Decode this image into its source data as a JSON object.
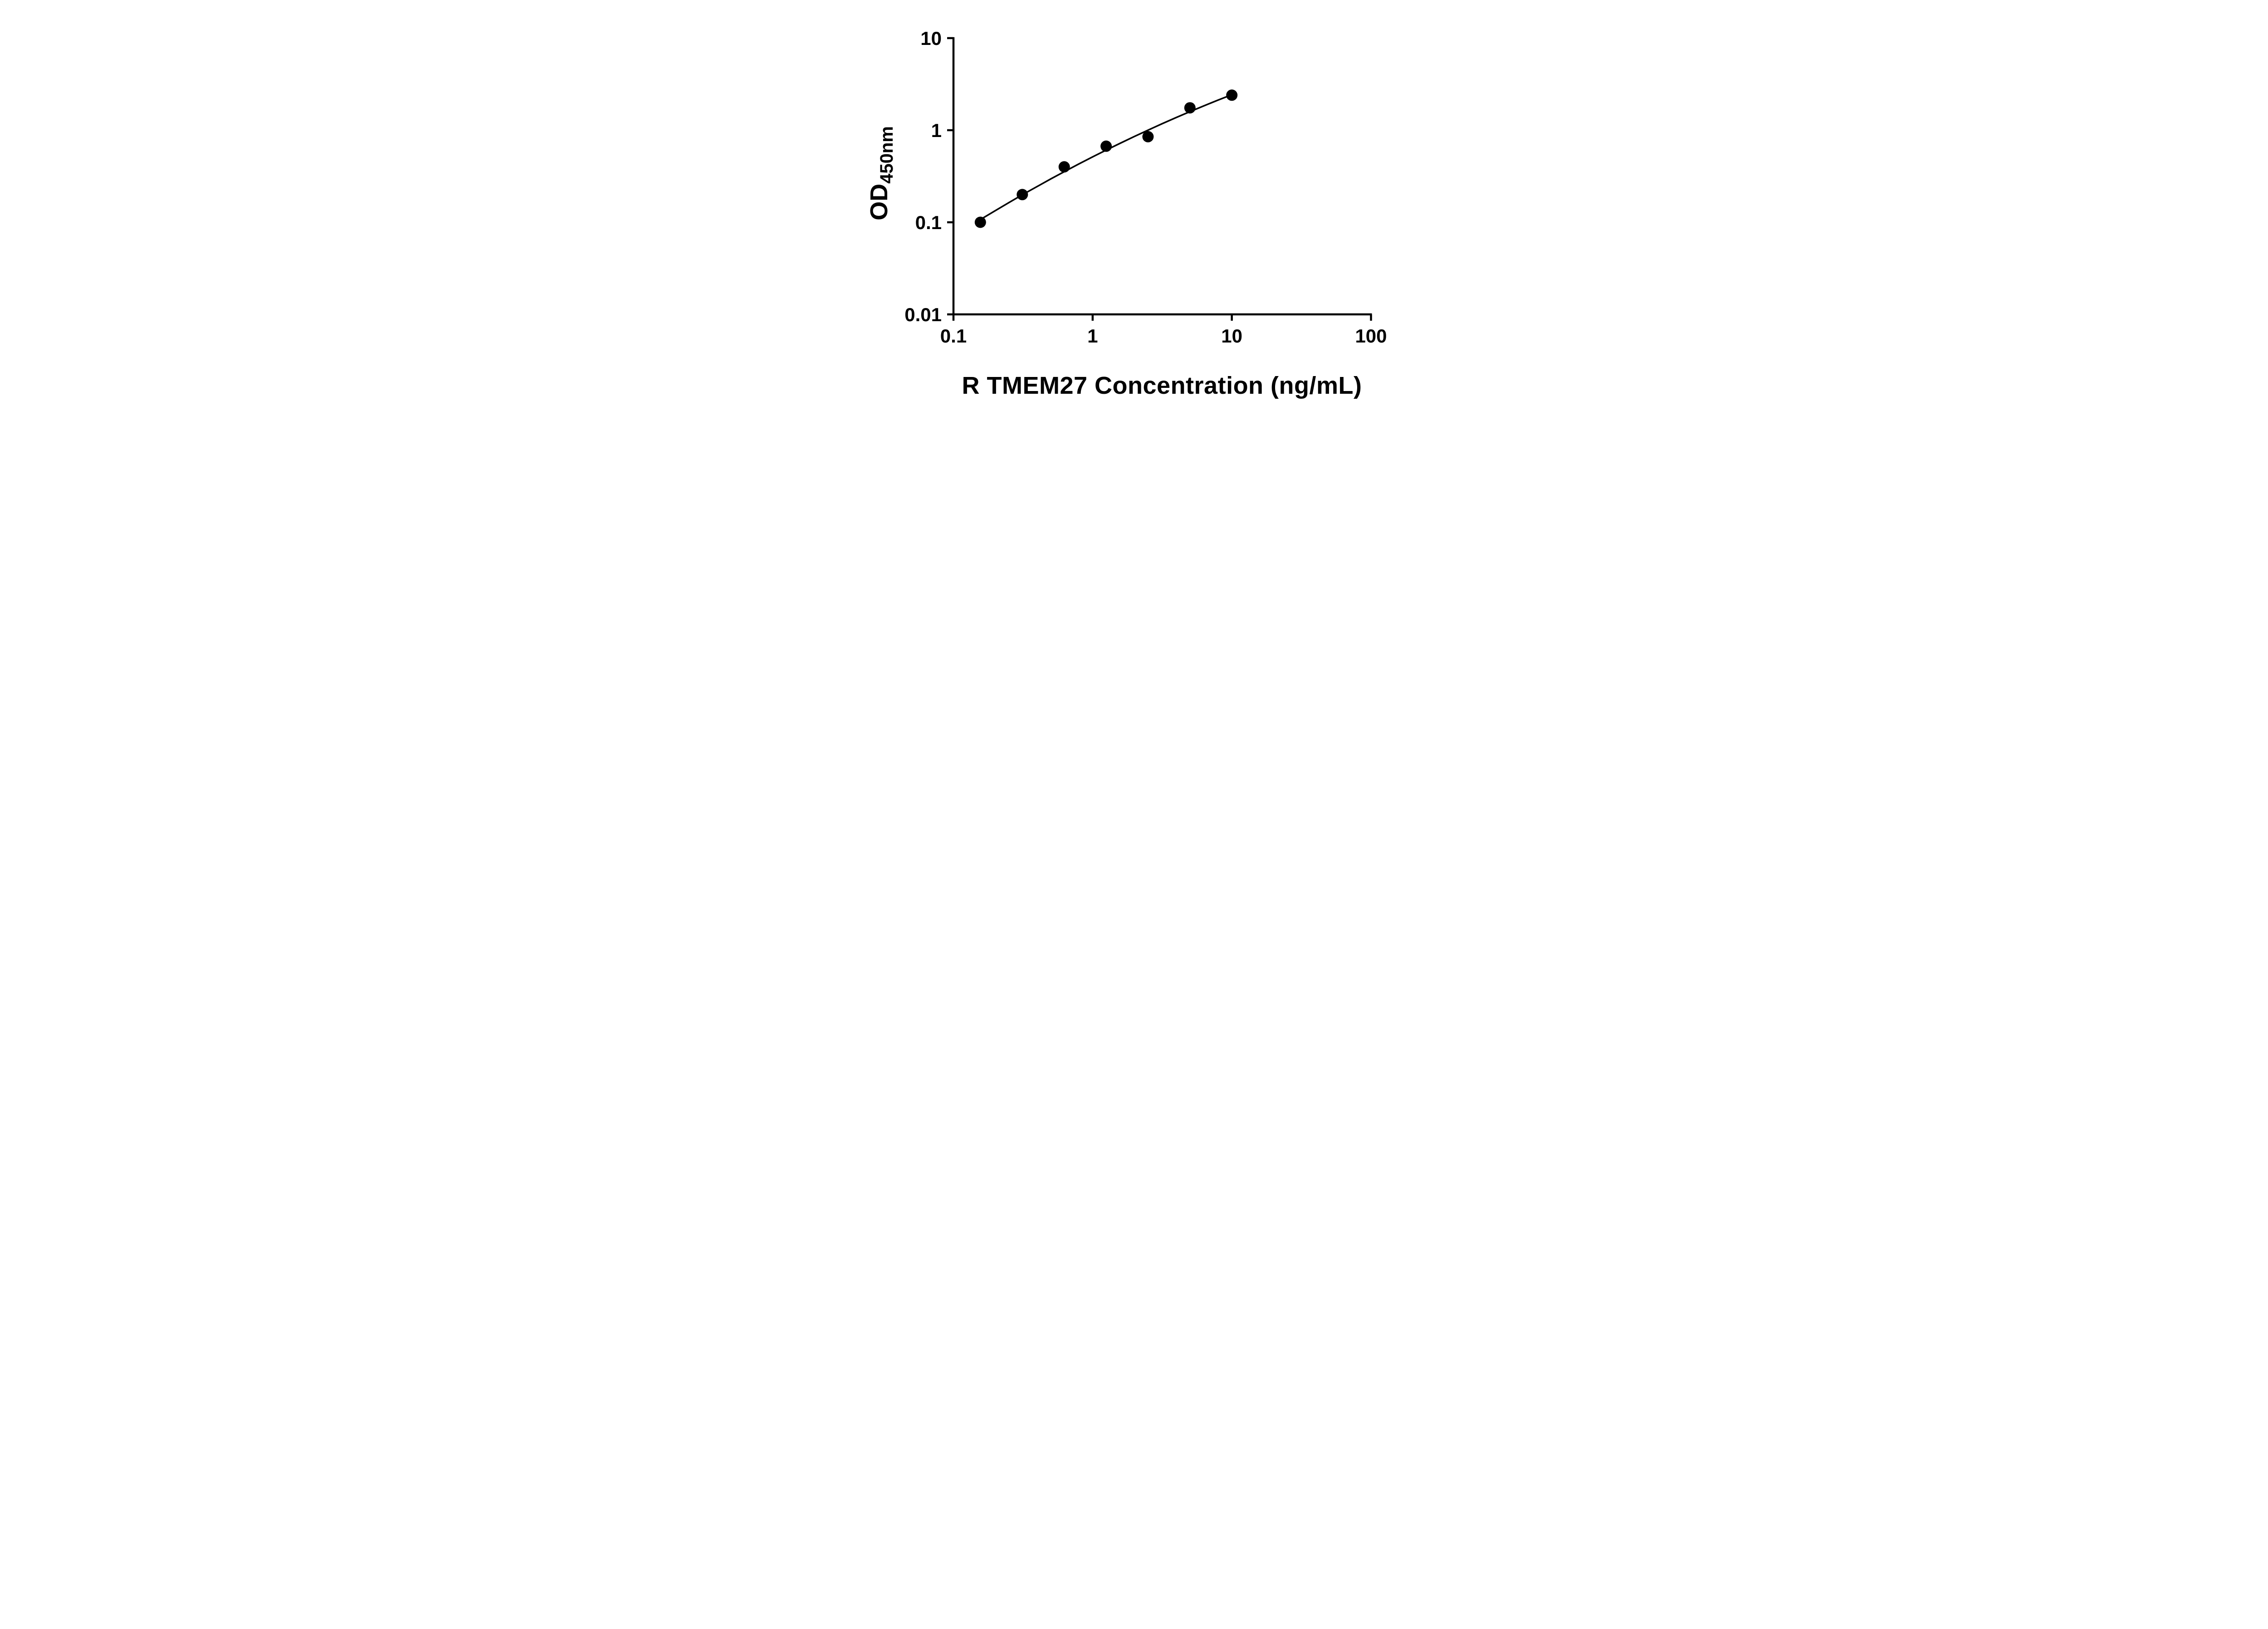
{
  "figure": {
    "background": "#ffffff"
  },
  "chart_data": {
    "type": "scatter",
    "title": "",
    "xlabel": "R TMEM27 Concentration (ng/mL)",
    "ylabel_base": "OD",
    "ylabel_sub": "450nm",
    "x_scale": "log",
    "y_scale": "log",
    "xlim": [
      0.1,
      100
    ],
    "ylim": [
      0.01,
      10
    ],
    "x_ticks": [
      0.1,
      1,
      10,
      100
    ],
    "x_tick_labels": [
      "0.1",
      "1",
      "10",
      "100"
    ],
    "y_ticks": [
      0.01,
      0.1,
      1,
      10
    ],
    "y_tick_labels": [
      "0.01",
      "0.1",
      "1",
      "10"
    ],
    "grid": false,
    "legend": "none",
    "axis_color": "#000000",
    "marker_color": "#000000",
    "line_color": "#000000",
    "points": [
      {
        "x": 0.156,
        "y": 0.1
      },
      {
        "x": 0.3125,
        "y": 0.2
      },
      {
        "x": 0.625,
        "y": 0.4
      },
      {
        "x": 1.25,
        "y": 0.67
      },
      {
        "x": 2.5,
        "y": 0.85
      },
      {
        "x": 5,
        "y": 1.75
      },
      {
        "x": 10,
        "y": 2.4
      }
    ],
    "fit_curve": [
      {
        "x": 0.156,
        "y": 0.107
      },
      {
        "x": 0.2,
        "y": 0.134
      },
      {
        "x": 0.251,
        "y": 0.164
      },
      {
        "x": 0.316,
        "y": 0.201
      },
      {
        "x": 0.398,
        "y": 0.244
      },
      {
        "x": 0.501,
        "y": 0.296
      },
      {
        "x": 0.631,
        "y": 0.357
      },
      {
        "x": 0.794,
        "y": 0.429
      },
      {
        "x": 1.0,
        "y": 0.513
      },
      {
        "x": 1.259,
        "y": 0.611
      },
      {
        "x": 1.585,
        "y": 0.724
      },
      {
        "x": 1.995,
        "y": 0.855
      },
      {
        "x": 2.512,
        "y": 1.005
      },
      {
        "x": 3.162,
        "y": 1.177
      },
      {
        "x": 3.981,
        "y": 1.372
      },
      {
        "x": 5.012,
        "y": 1.592
      },
      {
        "x": 6.31,
        "y": 1.84
      },
      {
        "x": 7.943,
        "y": 2.118
      },
      {
        "x": 10.0,
        "y": 2.427
      }
    ]
  }
}
